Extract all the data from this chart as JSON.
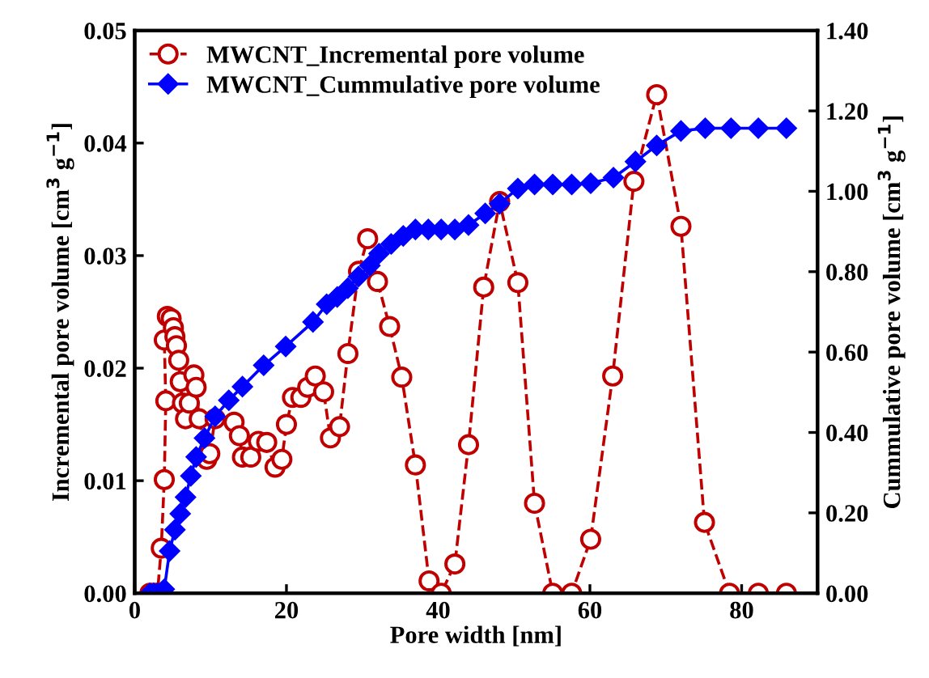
{
  "chart_data": {
    "type": "line",
    "xlabel": "Pore width [nm]",
    "ylabel": "Incremental pore volume [cm$^{3}$ g$^{−1}$]",
    "y2label": "Cummulative pore volume [cm$^{3}$ g$^{−1}$]",
    "xlim": [
      0,
      90
    ],
    "xticks": [
      0,
      20,
      40,
      60,
      80
    ],
    "ylim": [
      0,
      0.05
    ],
    "yticks": [
      {
        "value": 0,
        "label": "0.00"
      },
      {
        "value": 0.01,
        "label": "0.01"
      },
      {
        "value": 0.02,
        "label": "0.02"
      },
      {
        "value": 0.03,
        "label": "0.03"
      },
      {
        "value": 0.04,
        "label": "0.04"
      },
      {
        "value": 0.05,
        "label": "0.05"
      }
    ],
    "y2lim": [
      0,
      1.4
    ],
    "y2ticks": [
      {
        "value": 0,
        "label": "0.00"
      },
      {
        "value": 0.2,
        "label": "0.20"
      },
      {
        "value": 0.4,
        "label": "0.40"
      },
      {
        "value": 0.6,
        "label": "0.60"
      },
      {
        "value": 0.8,
        "label": "0.80"
      },
      {
        "value": 1.0,
        "label": "1.00"
      },
      {
        "value": 1.2,
        "label": "1.20"
      },
      {
        "value": 1.4,
        "label": "1.40"
      }
    ],
    "grid": false,
    "legend": "top left",
    "series": [
      {
        "name": "MWCNT_Incremental pore volume",
        "color": "#c00000",
        "marker": "circle",
        "line_style": "dashed",
        "x": [
          2.0,
          2.5,
          3.0,
          3.5,
          3.9,
          4.1,
          3.9,
          4.3,
          4.8,
          5.1,
          5.3,
          5.5,
          5.8,
          6.0,
          6.3,
          6.7,
          7.2,
          7.8,
          8.1,
          8.5,
          9.5,
          9.9,
          10.6,
          13.1,
          13.8,
          14.2,
          15.3,
          16.3,
          17.4,
          18.5,
          19.4,
          20.0,
          20.8,
          21.9,
          22.8,
          23.8,
          24.9,
          25.8,
          27.0,
          28.1,
          29.5,
          30.7,
          32.0,
          33.6,
          35.2,
          37.0,
          38.8,
          40.4,
          42.2,
          44.0,
          46.0,
          48.1,
          50.5,
          52.7,
          55.1,
          57.6,
          60.1,
          63.0,
          65.8,
          68.8,
          72.0,
          75.1,
          78.4,
          82.2,
          85.9
        ],
        "values": [
          0,
          0,
          0,
          0.004,
          0.0101,
          0.0171,
          0.0225,
          0.0246,
          0.0244,
          0.0236,
          0.0228,
          0.022,
          0.0207,
          0.0188,
          0.0169,
          0.0155,
          0.0169,
          0.0194,
          0.0183,
          0.0155,
          0.0119,
          0.0124,
          0.0155,
          0.0152,
          0.014,
          0.0121,
          0.0121,
          0.0135,
          0.0134,
          0.0112,
          0.0119,
          0.015,
          0.0174,
          0.0174,
          0.0183,
          0.0193,
          0.0179,
          0.0138,
          0.0148,
          0.0213,
          0.0286,
          0.0315,
          0.0277,
          0.0237,
          0.0192,
          0.0114,
          0.0011,
          0,
          0.0026,
          0.0132,
          0.0272,
          0.0348,
          0.0276,
          0.008,
          0,
          0,
          0.0048,
          0.0193,
          0.0366,
          0.0443,
          0.0326,
          0.0063,
          0,
          0,
          0
        ]
      },
      {
        "name": "MWCNT_Cummulative pore volume",
        "color": "#0000ff",
        "marker": "diamond",
        "line_style": "solid",
        "axis": "y2",
        "x": [
          2.0,
          2.5,
          3.0,
          3.9,
          4.6,
          5.3,
          6.0,
          6.7,
          7.4,
          8.1,
          9.2,
          10.6,
          12.4,
          14.2,
          17.0,
          19.9,
          23.5,
          25.3,
          26.7,
          28.1,
          29.5,
          31.0,
          32.2,
          33.8,
          35.4,
          37.0,
          38.7,
          40.4,
          42.2,
          44.0,
          46.2,
          48.1,
          50.5,
          52.7,
          55.1,
          57.6,
          60.1,
          63.1,
          66.0,
          68.8,
          72.0,
          75.2,
          78.6,
          82.2,
          85.9
        ],
        "values": [
          0,
          0,
          0,
          0.01,
          0.105,
          0.158,
          0.198,
          0.239,
          0.292,
          0.339,
          0.386,
          0.44,
          0.48,
          0.514,
          0.567,
          0.614,
          0.675,
          0.719,
          0.737,
          0.759,
          0.788,
          0.815,
          0.845,
          0.869,
          0.889,
          0.905,
          0.905,
          0.905,
          0.905,
          0.916,
          0.945,
          0.969,
          1.007,
          1.017,
          1.017,
          1.017,
          1.02,
          1.034,
          1.074,
          1.114,
          1.15,
          1.157,
          1.157,
          1.157,
          1.157
        ]
      }
    ]
  }
}
